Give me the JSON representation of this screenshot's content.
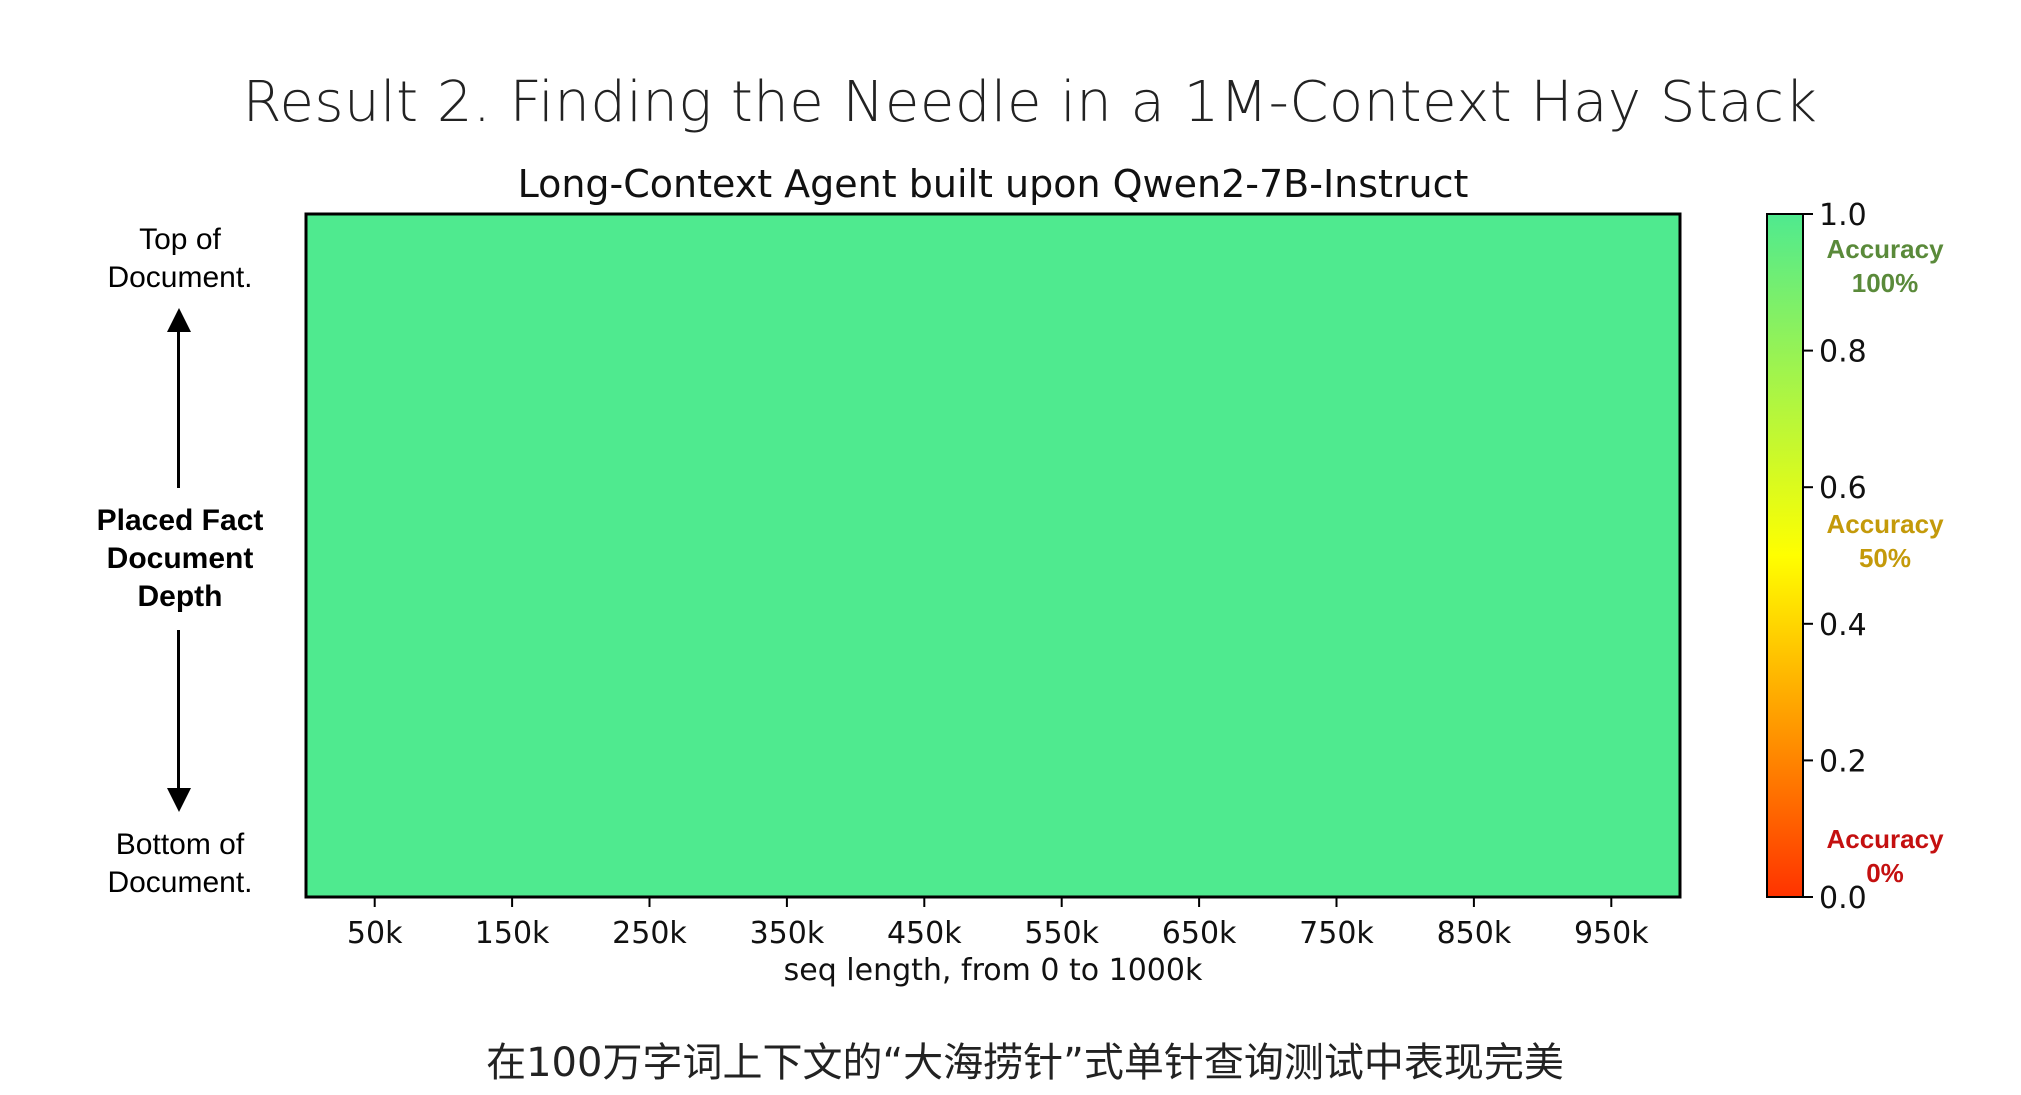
{
  "main_title": "Result 2. Finding the Needle in a 1M-Context Hay Stack",
  "caption": "在100万字词上下文的“大海捞针”式单针查询测试中表现完美",
  "y_axis_annotations": {
    "top": "Top of\nDocument.",
    "middle": "Placed Fact\nDocument\nDepth",
    "bottom": "Bottom of\nDocument."
  },
  "colorbar_annotations": {
    "high": "Accuracy\n100%",
    "mid": "Accuracy\n50%",
    "low": "Accuracy\n0%"
  },
  "colors": {
    "heatmap_fill": "#4fea8f",
    "colorbar_top": "#4fea8f",
    "colorbar_mid": "#ffff00",
    "colorbar_bottom": "#ff3300",
    "ann_high": "#5a8a3a",
    "ann_mid": "#c49a0a",
    "ann_low": "#c41010"
  },
  "chart_data": {
    "type": "heatmap",
    "title": "Long-Context Agent built upon Qwen2-7B-Instruct",
    "xlabel": "seq length, from 0 to 1000k",
    "ylabel": "",
    "x_ticks": [
      "50k",
      "150k",
      "250k",
      "350k",
      "450k",
      "550k",
      "650k",
      "750k",
      "850k",
      "950k"
    ],
    "x_tick_values": [
      50,
      150,
      250,
      350,
      450,
      550,
      650,
      750,
      850,
      950
    ],
    "xlim": [
      0,
      1000
    ],
    "value": 1.0,
    "colorbar": {
      "ticks": [
        "0.0",
        "0.2",
        "0.4",
        "0.6",
        "0.8",
        "1.0"
      ],
      "tick_values": [
        0.0,
        0.2,
        0.4,
        0.6,
        0.8,
        1.0
      ],
      "range": [
        0,
        1
      ]
    }
  }
}
